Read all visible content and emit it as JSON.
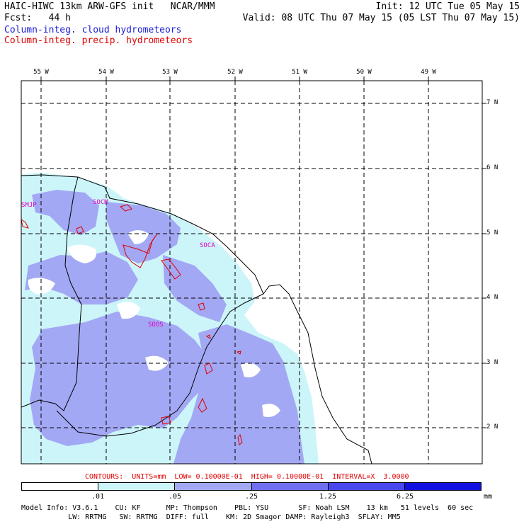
{
  "header": {
    "title": "HAIC-HIWC 13km ARW-GFS init   NCAR/MMM",
    "init": "Init: 12 UTC Tue 05 May 15",
    "fcst": "Fcst:   44 h",
    "valid": "Valid: 08 UTC Thu 07 May 15 (05 LST Thu 07 May 15)",
    "cloud_label": "Column-integ. cloud hydrometeors",
    "precip_label": "Column-integ. precip. hydrometeors"
  },
  "map": {
    "lon_labels": [
      "55 W",
      "54 W",
      "53 W",
      "52 W",
      "51 W",
      "50 W",
      "49 W"
    ],
    "lat_labels": [
      "7 N",
      "6 N",
      "5 N",
      "4 N",
      "3 N",
      "2 N"
    ],
    "station_labels": [
      "SMJP",
      "SOCM",
      "SOCA",
      "SOOS"
    ],
    "colors": {
      "light": "#ccf5fa",
      "medium": "#a3a8f4",
      "precip_contour": "#e00000",
      "border": "#000000",
      "station": "#e000c8"
    }
  },
  "contour_note": "CONTOURS:  UNITS=mm  LOW= 0.10000E-01  HIGH= 0.10000E-01  INTERVAL=X  3.0000",
  "colorbar": {
    "colors": [
      "#ffffff",
      "#ccf5fa",
      "#a3a8f4",
      "#6e6ef0",
      "#4848ee",
      "#1010e0"
    ],
    "ticks": [
      ".01",
      ".05",
      ".25",
      "1.25",
      "6.25"
    ],
    "unit": "mm"
  },
  "model_info": {
    "line1": "Model Info: V3.6.1    CU: KF      MP: Thompson    PBL: YSU       SF: Noah LSM    13 km   51 levels  60 sec",
    "line2": "           LW: RRTMG   SW: RRTMG  DIFF: full    KM: 2D Smagor DAMP: Rayleigh3  SFLAY: MM5"
  }
}
